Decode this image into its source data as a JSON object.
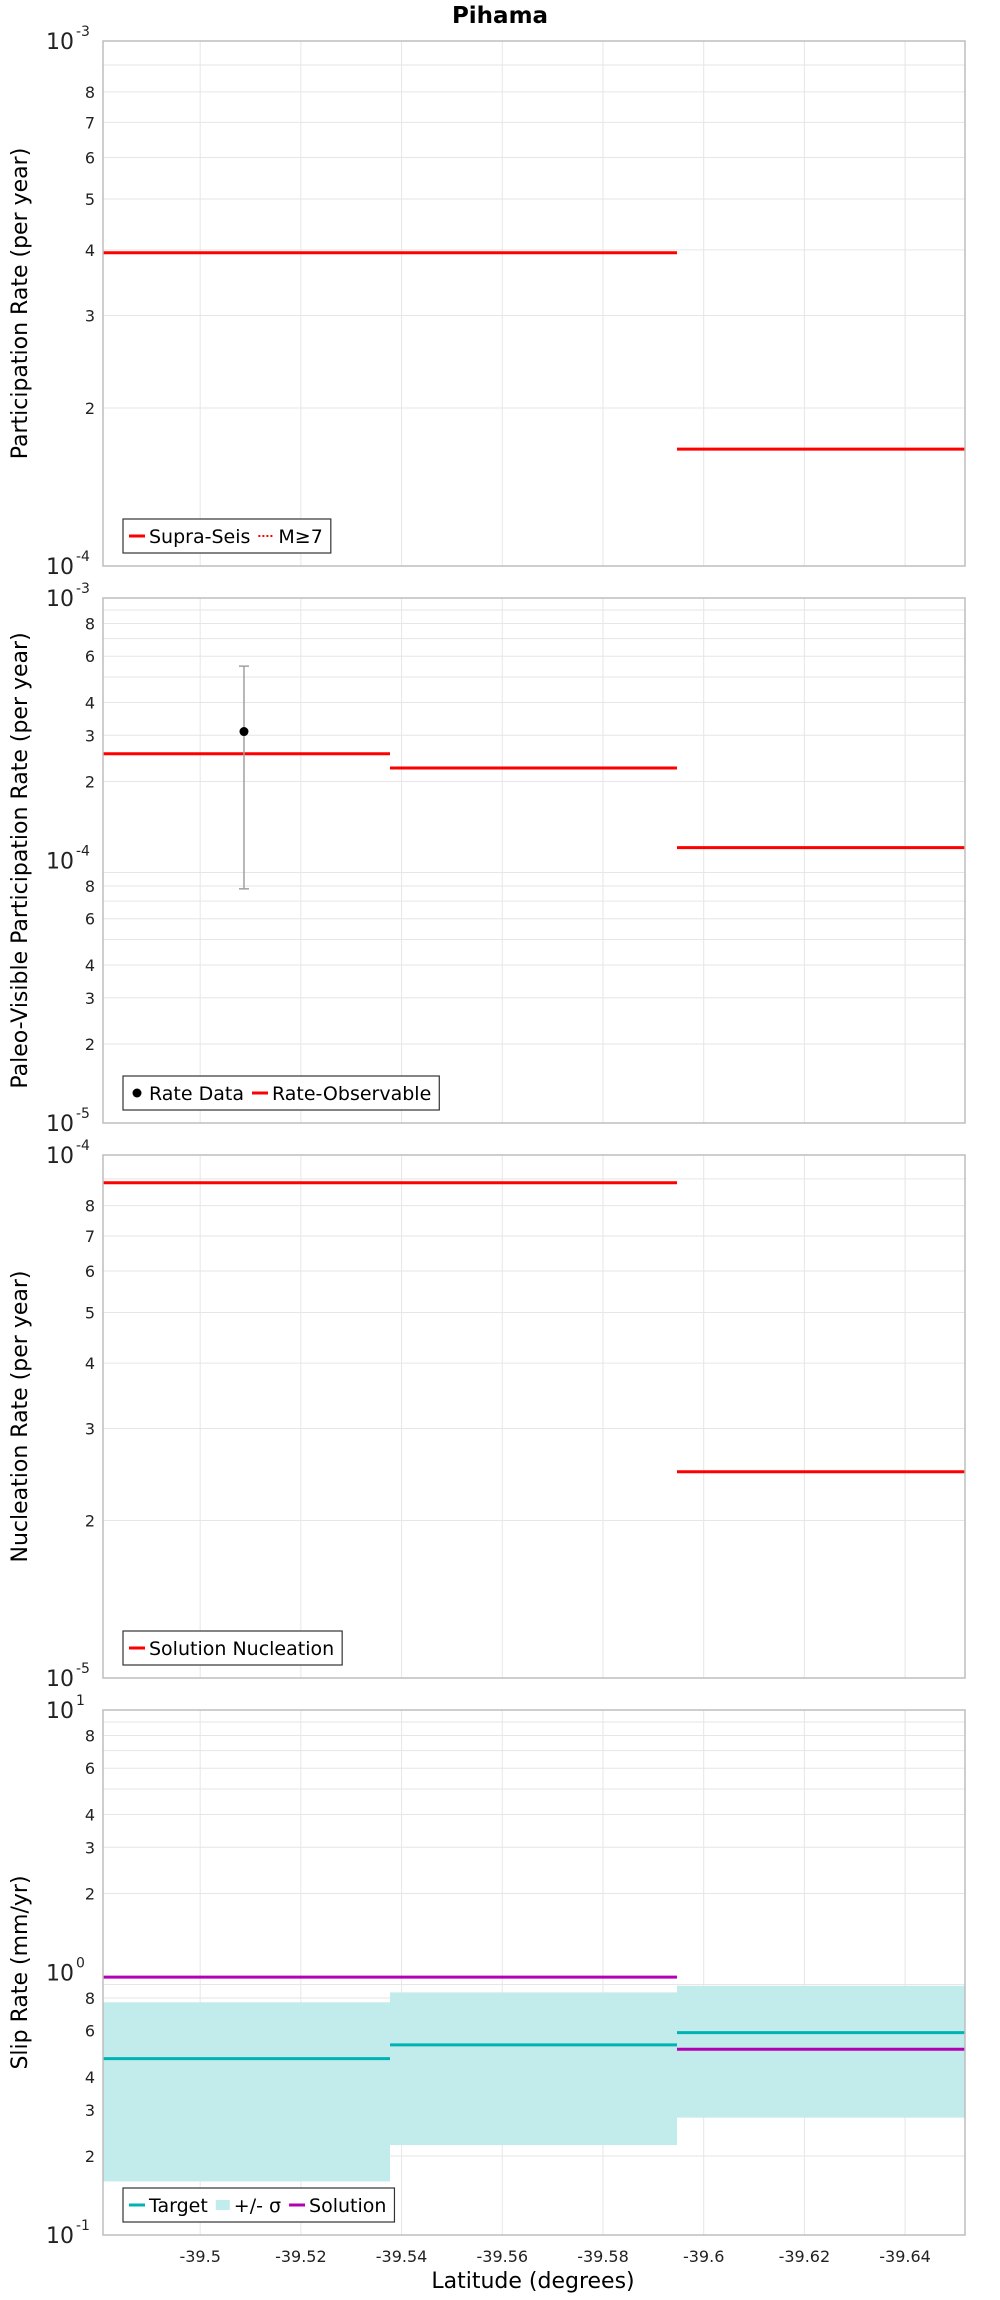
{
  "title": "Pihama",
  "xlabel": "Latitude (degrees)",
  "colors": {
    "red": "#ff0000",
    "cyan": "#00b3b3",
    "band": "#c2ebeb",
    "magenta": "#b300b3",
    "data": "#000000",
    "errbar": "#a0a0a0"
  },
  "chart_data": [
    {
      "type": "line",
      "name": "participation",
      "ylabel": "Participation Rate (per year)",
      "yscale": "log",
      "xlim": [
        -39.4807,
        -39.6519
      ],
      "ylim": [
        0.0001,
        0.001
      ],
      "y_minor_labels": [
        "2",
        "3",
        "4",
        "5",
        "6",
        "7",
        "8"
      ],
      "y_major_labels": [
        {
          "base": "10",
          "exp": "-4"
        },
        {
          "base": "10",
          "exp": "-3"
        }
      ],
      "series": [
        {
          "name": "Supra-Seis",
          "style": "solid",
          "color": "#ff0000",
          "segments": [
            {
              "x": [
                -39.4807,
                -39.5377
              ],
              "y": 0.000395
            },
            {
              "x": [
                -39.5377,
                -39.5947
              ],
              "y": 0.000395
            },
            {
              "x": [
                -39.5947,
                -39.6519
              ],
              "y": 0.000167
            }
          ]
        },
        {
          "name": "M≥7",
          "style": "dotted",
          "color": "#ff0000",
          "segments": [
            {
              "x": [
                -39.4807,
                -39.5377
              ],
              "y": 0.000395
            },
            {
              "x": [
                -39.5377,
                -39.5947
              ],
              "y": 0.000395
            },
            {
              "x": [
                -39.5947,
                -39.6519
              ],
              "y": 0.000167
            }
          ]
        }
      ],
      "legend": [
        {
          "label": "Supra-Seis",
          "style": "solid",
          "color": "#ff0000"
        },
        {
          "label": "M≥7",
          "style": "dotted",
          "color": "#ff0000"
        }
      ]
    },
    {
      "type": "line",
      "name": "paleo",
      "ylabel": "Paleo-Visible Participation Rate (per year)",
      "yscale": "log",
      "xlim": [
        -39.4807,
        -39.6519
      ],
      "ylim": [
        1e-05,
        0.001
      ],
      "y_minor_labels": [
        "2",
        "3",
        "4",
        "6",
        "8"
      ],
      "y_major_labels": [
        {
          "base": "10",
          "exp": "-5"
        },
        {
          "base": "10",
          "exp": "-4"
        },
        {
          "base": "10",
          "exp": "-3"
        }
      ],
      "series": [
        {
          "name": "Rate-Observable",
          "style": "solid",
          "color": "#ff0000",
          "segments": [
            {
              "x": [
                -39.4807,
                -39.5377
              ],
              "y": 0.000255
            },
            {
              "x": [
                -39.5377,
                -39.5947
              ],
              "y": 0.000225
            },
            {
              "x": [
                -39.5947,
                -39.6519
              ],
              "y": 0.000112
            }
          ]
        }
      ],
      "points": [
        {
          "name": "Rate Data",
          "x": -39.5087,
          "y": 0.00031,
          "low": 7.8e-05,
          "high": 0.00055
        }
      ],
      "legend": [
        {
          "label": "Rate Data",
          "style": "marker",
          "color": "#000000"
        },
        {
          "label": "Rate-Observable",
          "style": "solid",
          "color": "#ff0000"
        }
      ]
    },
    {
      "type": "line",
      "name": "nucleation",
      "ylabel": "Nucleation Rate (per year)",
      "yscale": "log",
      "xlim": [
        -39.4807,
        -39.6519
      ],
      "ylim": [
        1e-05,
        0.0001
      ],
      "y_minor_labels": [
        "2",
        "3",
        "4",
        "5",
        "6",
        "7",
        "8"
      ],
      "y_major_labels": [
        {
          "base": "10",
          "exp": "-5"
        },
        {
          "base": "10",
          "exp": "-4"
        }
      ],
      "series": [
        {
          "name": "Solution Nucleation",
          "style": "solid",
          "color": "#ff0000",
          "segments": [
            {
              "x": [
                -39.4807,
                -39.5377
              ],
              "y": 8.85e-05
            },
            {
              "x": [
                -39.5377,
                -39.5947
              ],
              "y": 8.85e-05
            },
            {
              "x": [
                -39.5947,
                -39.6519
              ],
              "y": 2.48e-05
            }
          ]
        }
      ],
      "legend": [
        {
          "label": "Solution Nucleation",
          "style": "solid",
          "color": "#ff0000"
        }
      ]
    },
    {
      "type": "line",
      "name": "slip",
      "ylabel": "Slip Rate (mm/yr)",
      "yscale": "log",
      "xlim": [
        -39.4807,
        -39.6519
      ],
      "ylim": [
        0.1,
        10
      ],
      "y_minor_labels": [
        "2",
        "3",
        "4",
        "6",
        "8"
      ],
      "y_major_labels": [
        {
          "base": "10",
          "exp": "-1"
        },
        {
          "base": "10",
          "exp": "0"
        },
        {
          "base": "10",
          "exp": "1"
        }
      ],
      "bands": [
        {
          "x": [
            -39.4807,
            -39.5377
          ],
          "low": 0.16,
          "high": 0.77
        },
        {
          "x": [
            -39.5377,
            -39.5947
          ],
          "low": 0.22,
          "high": 0.84
        },
        {
          "x": [
            -39.5947,
            -39.6519
          ],
          "low": 0.28,
          "high": 0.89
        }
      ],
      "series": [
        {
          "name": "Target",
          "style": "solid",
          "color": "#00b3b3",
          "segments": [
            {
              "x": [
                -39.4807,
                -39.5377
              ],
              "y": 0.47
            },
            {
              "x": [
                -39.5377,
                -39.5947
              ],
              "y": 0.53
            },
            {
              "x": [
                -39.5947,
                -39.6519
              ],
              "y": 0.59
            }
          ]
        },
        {
          "name": "Solution",
          "style": "solid",
          "color": "#b300b3",
          "segments": [
            {
              "x": [
                -39.4807,
                -39.5377
              ],
              "y": 0.96
            },
            {
              "x": [
                -39.5377,
                -39.5947
              ],
              "y": 0.96
            },
            {
              "x": [
                -39.5947,
                -39.6519
              ],
              "y": 0.51
            }
          ]
        }
      ],
      "legend": [
        {
          "label": "Target",
          "style": "solid",
          "color": "#00b3b3"
        },
        {
          "label": "+/- σ",
          "style": "band",
          "color": "#c2ebeb"
        },
        {
          "label": "Solution",
          "style": "solid",
          "color": "#b300b3"
        }
      ]
    }
  ],
  "x_ticks": [
    {
      "value": -39.5,
      "label": "-39.5"
    },
    {
      "value": -39.52,
      "label": "-39.52"
    },
    {
      "value": -39.54,
      "label": "-39.54"
    },
    {
      "value": -39.56,
      "label": "-39.56"
    },
    {
      "value": -39.58,
      "label": "-39.58"
    },
    {
      "value": -39.6,
      "label": "-39.6"
    },
    {
      "value": -39.62,
      "label": "-39.62"
    },
    {
      "value": -39.64,
      "label": "-39.64"
    }
  ]
}
